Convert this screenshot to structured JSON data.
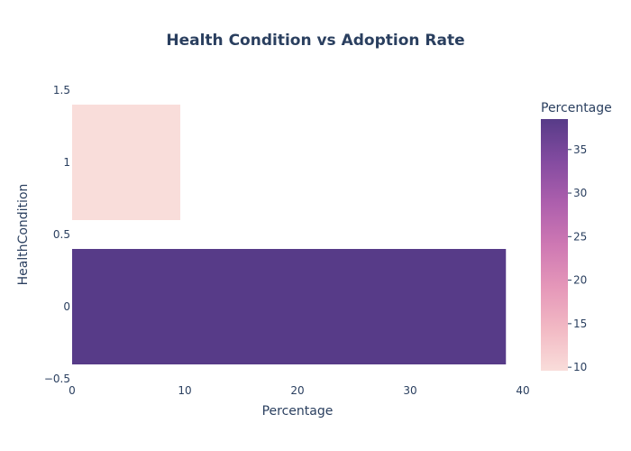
{
  "chart_data": {
    "type": "bar",
    "orientation": "horizontal",
    "title": "Health Condition vs Adoption Rate",
    "xlabel": "Percentage",
    "ylabel": "HealthCondition",
    "categories": [
      0,
      1
    ],
    "values": [
      38.5,
      9.6
    ],
    "xlim": [
      0,
      40
    ],
    "ylim": [
      -0.5,
      1.5
    ],
    "x_ticks": [
      "0",
      "10",
      "20",
      "30",
      "40"
    ],
    "y_ticks": [
      "−0.5",
      "0",
      "0.5",
      "1",
      "1.5"
    ],
    "grid": false,
    "colorbar": {
      "title": "Percentage",
      "range": [
        9.6,
        38.5
      ],
      "ticks": [
        "10",
        "15",
        "20",
        "25",
        "30",
        "35"
      ],
      "colors": [
        "#f9ddda",
        "#f2b9c4",
        "#e597b9",
        "#ce78b3",
        "#ad5fad",
        "#834ba0",
        "#573b88"
      ]
    }
  }
}
